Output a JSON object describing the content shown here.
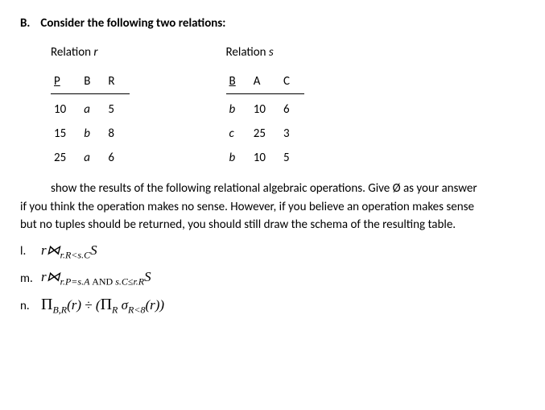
{
  "header": {
    "letter": "B.",
    "text": "Consider the following two relations:"
  },
  "relation_r": {
    "title_prefix": "Relation ",
    "title_var": "r",
    "columns": [
      "P",
      "B",
      "R"
    ],
    "underline": [
      true,
      false,
      false
    ],
    "rows": [
      [
        "10",
        "a",
        "5"
      ],
      [
        "15",
        "b",
        "8"
      ],
      [
        "25",
        "a",
        "6"
      ]
    ],
    "italic_cols": [
      false,
      true,
      false
    ]
  },
  "relation_s": {
    "title_prefix": "Relation ",
    "title_var": "s",
    "columns": [
      "B",
      "A",
      "C"
    ],
    "underline": [
      true,
      false,
      false
    ],
    "rows": [
      [
        "b",
        "10",
        "6"
      ],
      [
        "c",
        "25",
        "3"
      ],
      [
        "b",
        "10",
        "5"
      ]
    ],
    "italic_cols": [
      true,
      false,
      false
    ]
  },
  "instructions": {
    "line1": "show the results of the following relational algebraic operations. Give Ø as your answer",
    "line2": "if you think the operation makes no sense. However, if you believe an operation makes sense",
    "line3": "but no tuples should be returned, you should still draw the schema of the resulting table."
  },
  "questions": {
    "l": {
      "letter": "l.",
      "expr_html": "r⋈<sub class='sub'>r.R&lt;s.C</sub>S"
    },
    "m": {
      "letter": "m.",
      "expr_html": "r⋈<sub class='sub'>r.P=s.A <span class='roman'>AND</span> s.C≤r.R</sub>S"
    },
    "n": {
      "letter": "n.",
      "expr_html": "<span class='big op'>Π</span><sub class='sub'>B,R</sub>(r) <span class='op'>÷</span> (<span class='big op'>Π</span><sub class='sub'>R</sub> σ<sub class='sub'>R&lt;8</sub>(r))"
    }
  }
}
